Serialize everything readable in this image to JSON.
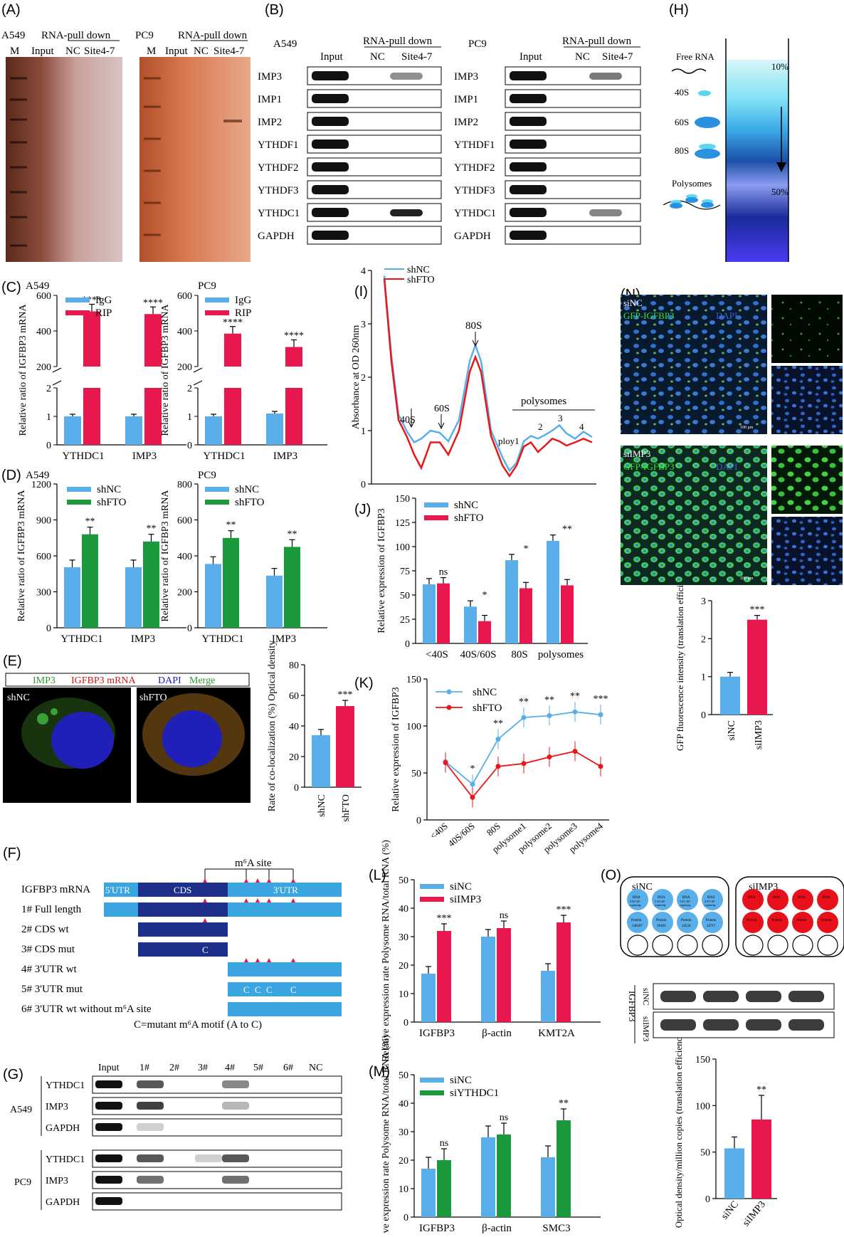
{
  "colors": {
    "blue": "#5aaeea",
    "red": "#e8184f",
    "green": "#1a9a3c",
    "navy": "#1e2f8a",
    "utr": "#3aa5de"
  },
  "panels": {
    "A": "(A)",
    "B": "(B)",
    "C": "(C)",
    "D": "(D)",
    "E": "(E)",
    "F": "(F)",
    "G": "(G)",
    "H": "(H)",
    "I": "(I)",
    "J": "(J)",
    "K": "(K)",
    "L": "(L)",
    "M": "(M)",
    "N": "(N)",
    "O": "(O)"
  },
  "panelA": {
    "cell1": "A549",
    "cell2": "PC9",
    "pulldown": "RNA-pull down",
    "lanes": [
      "M",
      "Input",
      "NC",
      "Site4-7"
    ]
  },
  "panelB": {
    "cell1": "A549",
    "cell2": "PC9",
    "pulldown": "RNA-pull down",
    "lanes": [
      "Input",
      "NC",
      "Site4-7"
    ],
    "proteins": [
      "IMP3",
      "IMP1",
      "IMP2",
      "YTHDF1",
      "YTHDF2",
      "YTHDF3",
      "YTHDC1",
      "GAPDH"
    ]
  },
  "panelH": {
    "free_rna": "Free RNA",
    "s40": "40S",
    "s60": "60S",
    "s80": "80S",
    "polysomes": "Polysomes",
    "top": "10%",
    "bottom": "50%"
  },
  "panelE": {
    "legend": {
      "imp3": "IMP3",
      "igfbp3": "IGFBP3 mRNA",
      "dapi": "DAPI",
      "merge": "Merge"
    },
    "img1": "shNC",
    "img2": "shFTO"
  },
  "panelF": {
    "m6a_site": "m⁶A site",
    "mrna": "IGFBP3 mRNA",
    "utr5": "5'UTR",
    "cds": "CDS",
    "utr3": "3'UTR",
    "constructs": [
      "1# Full length",
      "2# CDS wt",
      "3# CDS mut",
      "4# 3'UTR wt",
      "5# 3'UTR mut",
      "6# 3'UTR wt without m⁶A site"
    ],
    "mut_letter": "C",
    "note": "C=mutant m⁶A motif (A to C)"
  },
  "panelG": {
    "lanes": [
      "Input",
      "1#",
      "2#",
      "3#",
      "4#",
      "5#",
      "6#",
      "NC"
    ],
    "cell1": "A549",
    "cell2": "PC9",
    "proteins": [
      "YTHDC1",
      "IMP3",
      "GAPDH"
    ]
  },
  "panelN": {
    "label1": "siNC",
    "label2": "siIMP3",
    "stain": "GFP-IGFBP3",
    "dapi": "DAPI",
    "scale": "100 μm"
  },
  "panelO": {
    "group1": "siNC",
    "group2": "siIMP3",
    "rna_label": "RNA",
    "protein_label": "Protein",
    "rna_values": [
      "6.02×10⁵",
      "5.59×10⁵",
      "5.87×10⁵",
      "4.97×10⁵"
    ],
    "copies_unit": "copies/ug",
    "protein_values": [
      "540187",
      "39164",
      "24534",
      "24717"
    ],
    "blot_gene": "IGFBP3",
    "blot_rows": [
      "siNC",
      "siIMP3"
    ]
  },
  "chart_data": [
    {
      "id": "C-A549",
      "type": "bar",
      "title": "A549",
      "ylabel": "Relative ratio of IGFBP3 mRNA",
      "categories": [
        "YTHDC1",
        "IMP3"
      ],
      "series": [
        {
          "name": "IgG",
          "values": [
            1.0,
            1.0
          ]
        },
        {
          "name": "RIP",
          "values": [
            510,
            495
          ]
        }
      ],
      "broken_axis": {
        "lower": [
          0,
          2
        ],
        "upper": [
          200,
          600
        ]
      },
      "yticks_lower": [
        "0",
        "1",
        "2"
      ],
      "yticks_upper": [
        "200",
        "400",
        "600"
      ],
      "significance": [
        "****",
        "****"
      ]
    },
    {
      "id": "C-PC9",
      "type": "bar",
      "title": "PC9",
      "ylabel": "Relative ratio of IGFBP3 mRNA",
      "categories": [
        "YTHDC1",
        "IMP3"
      ],
      "series": [
        {
          "name": "IgG",
          "values": [
            1.0,
            1.1
          ]
        },
        {
          "name": "RIP",
          "values": [
            385,
            310
          ]
        }
      ],
      "broken_axis": {
        "lower": [
          0,
          2
        ],
        "upper": [
          200,
          600
        ]
      },
      "yticks_lower": [
        "0",
        "1",
        "2"
      ],
      "yticks_upper": [
        "200",
        "400",
        "600"
      ],
      "significance": [
        "****",
        "****"
      ]
    },
    {
      "id": "D-A549",
      "type": "bar",
      "title": "A549",
      "ylabel": "Relative ratio of IGFBP3 mRNA",
      "categories": [
        "YTHDC1",
        "IMP3"
      ],
      "series": [
        {
          "name": "shNC",
          "values": [
            505,
            505
          ]
        },
        {
          "name": "shFTO",
          "values": [
            780,
            720
          ]
        }
      ],
      "ylim": [
        0,
        1200
      ],
      "yticks": [
        "0",
        "300",
        "600",
        "900",
        "1200"
      ],
      "significance": [
        "**",
        "**"
      ]
    },
    {
      "id": "D-PC9",
      "type": "bar",
      "title": "PC9",
      "ylabel": "Relative ratio of IGFBP3 mRNA",
      "categories": [
        "YTHDC1",
        "IMP3"
      ],
      "series": [
        {
          "name": "shNC",
          "values": [
            355,
            290
          ]
        },
        {
          "name": "shFTO",
          "values": [
            500,
            450
          ]
        }
      ],
      "ylim": [
        0,
        800
      ],
      "yticks": [
        "0",
        "200",
        "400",
        "600",
        "800"
      ],
      "significance": [
        "**",
        "**"
      ]
    },
    {
      "id": "E",
      "type": "bar",
      "ylabel": "Rate of co-localization (%) Optical density",
      "categories": [
        "shNC",
        "shFTO"
      ],
      "values": [
        34,
        53
      ],
      "ylim": [
        0,
        80
      ],
      "yticks": [
        "0",
        "20",
        "40",
        "60",
        "80"
      ],
      "significance": [
        "",
        "***"
      ]
    },
    {
      "id": "I",
      "type": "line",
      "ylabel": "Absorbance at OD 260nm",
      "ylim": [
        0,
        4
      ],
      "yticks": [
        "0",
        "1",
        "2",
        "3",
        "4"
      ],
      "series": [
        {
          "name": "shNC"
        },
        {
          "name": "shFTO"
        }
      ],
      "annotations": [
        "40S",
        "60S",
        "80S",
        "polysomes",
        "ploy1",
        "2",
        "3",
        "4"
      ]
    },
    {
      "id": "J",
      "type": "bar",
      "ylabel": "Relative expression of IGFBP3",
      "categories": [
        "<40S",
        "40S/60S",
        "80S",
        "polysomes"
      ],
      "series": [
        {
          "name": "shNC",
          "values": [
            61,
            38,
            86,
            106
          ]
        },
        {
          "name": "shFTO",
          "values": [
            62,
            23,
            57,
            60
          ]
        }
      ],
      "ylim": [
        0,
        150
      ],
      "yticks": [
        "0",
        "25",
        "50",
        "75",
        "100",
        "125",
        "150"
      ],
      "significance": [
        "ns",
        "*",
        "*",
        "**"
      ]
    },
    {
      "id": "K",
      "type": "line",
      "ylabel": "Relative expression of IGFBP3",
      "categories": [
        "<40S",
        "40S/60S",
        "80S",
        "polysome1",
        "polysome2",
        "polysome3",
        "polysome4"
      ],
      "series": [
        {
          "name": "shNC",
          "values": [
            62,
            38,
            86,
            109,
            111,
            115,
            112
          ]
        },
        {
          "name": "shFTO",
          "values": [
            61,
            24,
            57,
            60,
            67,
            73,
            57
          ]
        }
      ],
      "ylim": [
        0,
        150
      ],
      "yticks": [
        "0",
        "50",
        "100",
        "150"
      ],
      "significance": [
        "",
        "*",
        "**",
        "**",
        "**",
        "**",
        "***"
      ]
    },
    {
      "id": "L",
      "type": "bar",
      "ylabel": "Relative expression rate Polysome RNA/total RNA (%)",
      "categories": [
        "IGFBP3",
        "β-actin",
        "KMT2A"
      ],
      "series": [
        {
          "name": "siNC",
          "values": [
            17,
            30,
            18
          ]
        },
        {
          "name": "siIMP3",
          "values": [
            32,
            33,
            35
          ]
        }
      ],
      "ylim": [
        0,
        50
      ],
      "yticks": [
        "0",
        "10",
        "20",
        "30",
        "40",
        "50"
      ],
      "significance": [
        "***",
        "ns",
        "***"
      ]
    },
    {
      "id": "M",
      "type": "bar",
      "ylabel": "Relative expression rate Polysome RNA/total RNA (%)",
      "categories": [
        "IGFBP3",
        "β-actin",
        "SMC3"
      ],
      "series": [
        {
          "name": "siNC",
          "values": [
            17,
            28,
            21
          ]
        },
        {
          "name": "siYTHDC1",
          "values": [
            20,
            29,
            34
          ]
        }
      ],
      "ylim": [
        0,
        50
      ],
      "yticks": [
        "0",
        "10",
        "20",
        "30",
        "40",
        "50"
      ],
      "significance": [
        "ns",
        "ns",
        "**"
      ]
    },
    {
      "id": "N",
      "type": "bar",
      "ylabel": "GFP fluorescence intensity (translation efficiency)",
      "categories": [
        "siNC",
        "siIMP3"
      ],
      "values": [
        1.0,
        2.5
      ],
      "ylim": [
        0,
        3
      ],
      "yticks": [
        "0",
        "1",
        "2",
        "3"
      ],
      "significance": [
        "",
        "***"
      ]
    },
    {
      "id": "O",
      "type": "bar",
      "ylabel": "Optical density/million copies (translation efficiency)",
      "categories": [
        "siNC",
        "siIMP3"
      ],
      "values": [
        54,
        85
      ],
      "ylim": [
        0,
        150
      ],
      "yticks": [
        "0",
        "50",
        "100",
        "150"
      ],
      "significance": [
        "",
        "**"
      ]
    }
  ]
}
